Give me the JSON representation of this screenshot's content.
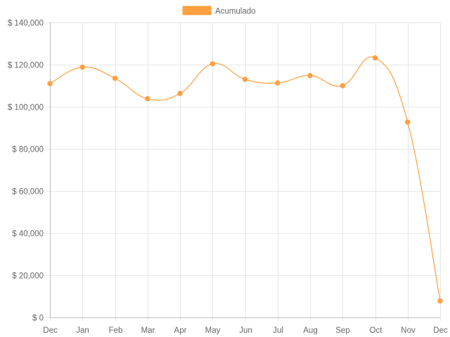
{
  "chart_data": {
    "type": "line",
    "categories": [
      "Dec",
      "Jan",
      "Feb",
      "Mar",
      "Apr",
      "May",
      "Jun",
      "Jul",
      "Aug",
      "Sep",
      "Oct",
      "Nov",
      "Dec"
    ],
    "series": [
      {
        "name": "Acumulado",
        "color": "#ff9f40",
        "values": [
          111000,
          118800,
          113500,
          103800,
          106300,
          120400,
          113000,
          111300,
          114800,
          110000,
          123200,
          92700,
          7800
        ]
      }
    ],
    "y_ticks": [
      0,
      20000,
      40000,
      60000,
      80000,
      100000,
      120000,
      140000
    ],
    "y_tick_labels": [
      "$ 0",
      "$ 20,000",
      "$ 40,000",
      "$ 60,000",
      "$ 80,000",
      "$ 100,000",
      "$ 120,000",
      "$ 140,000"
    ],
    "ylim": [
      0,
      140000
    ],
    "grid": true,
    "legend_position": "top-center",
    "title": "",
    "xlabel": "",
    "ylabel": ""
  }
}
